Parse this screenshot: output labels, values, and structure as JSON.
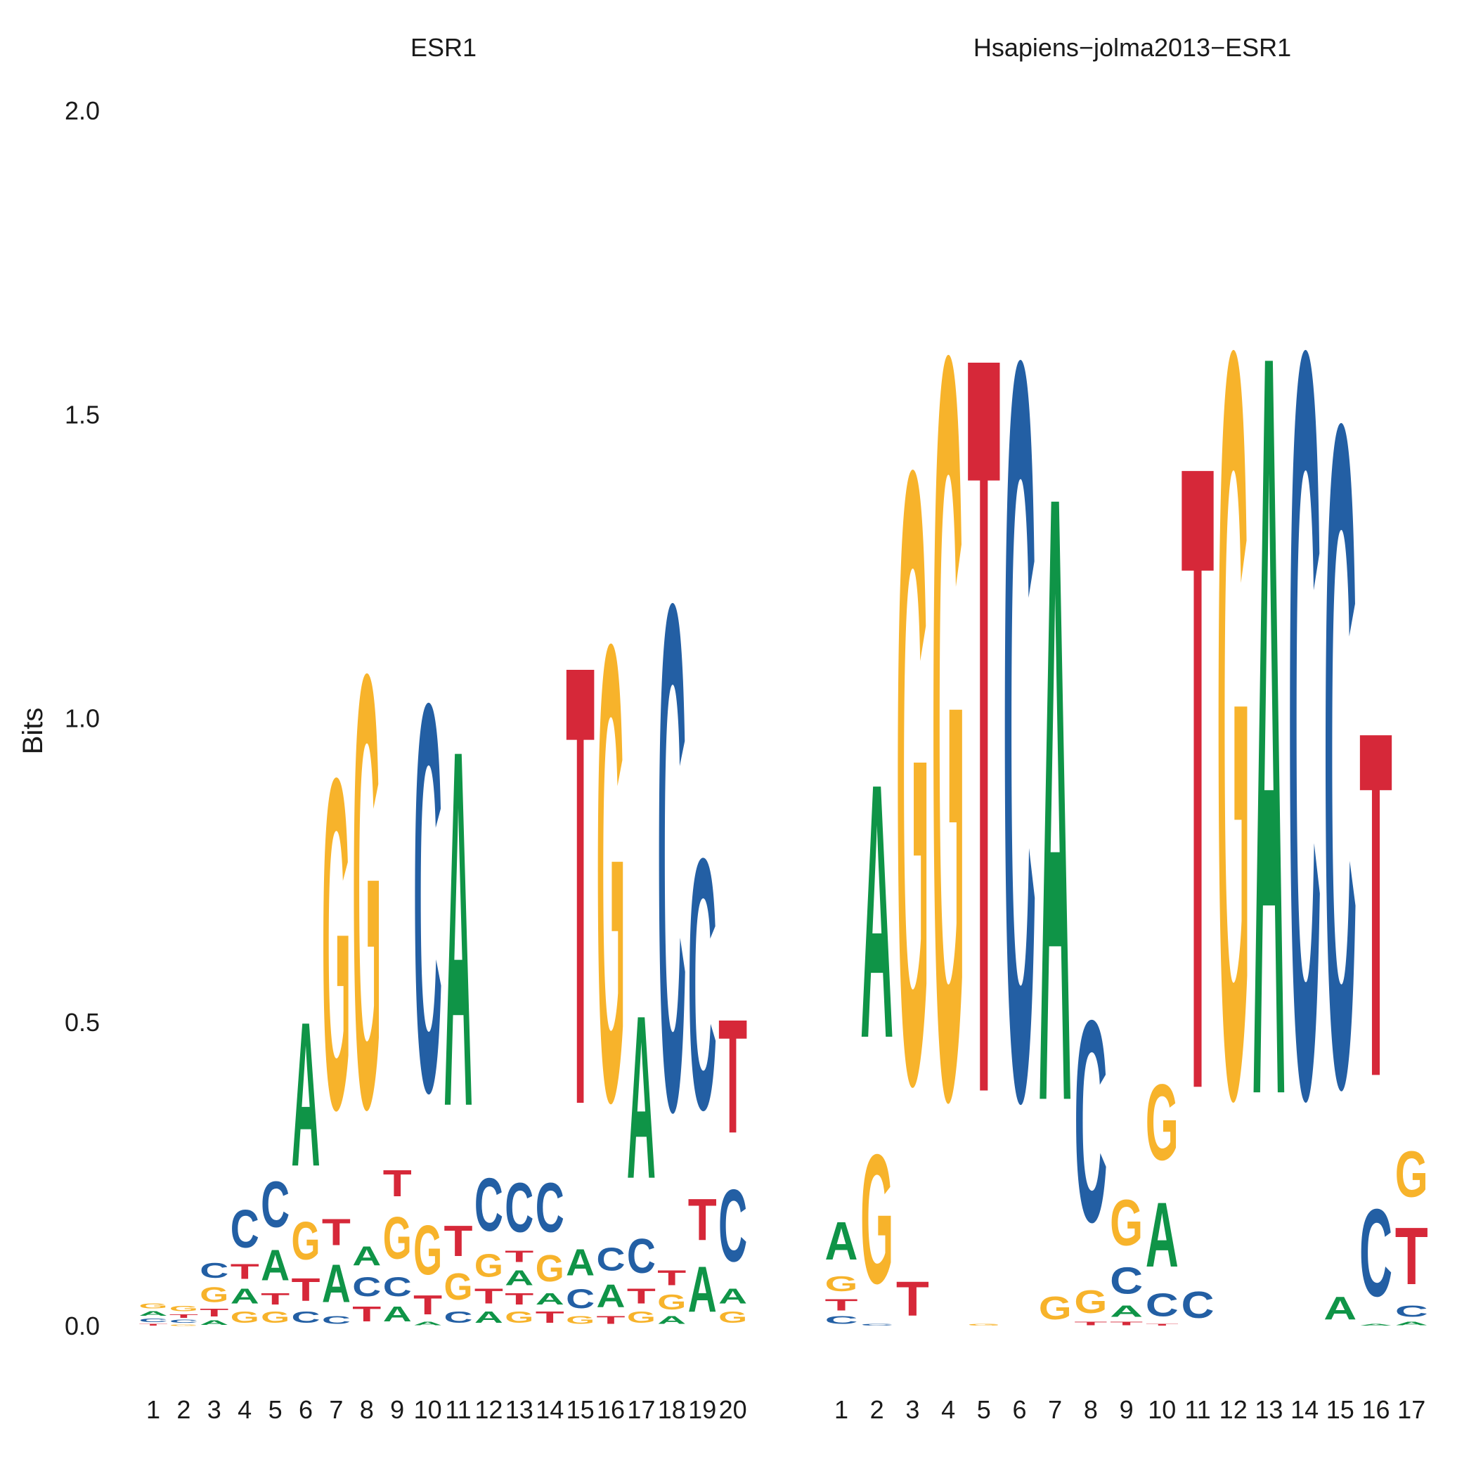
{
  "colors": {
    "A": "#0f9447",
    "C": "#235fa4",
    "G": "#f7b32b",
    "T": "#d62839"
  },
  "chart_data": [
    {
      "type": "sequence-logo",
      "title": "ESR1",
      "ylabel": "Bits",
      "ylim": [
        0,
        2
      ],
      "yticks": [
        "0.0",
        "0.5",
        "1.0",
        "1.5",
        "2.0"
      ],
      "positions": [
        [
          [
            "T",
            0.005
          ],
          [
            "C",
            0.01
          ],
          [
            "A",
            0.012
          ],
          [
            "G",
            0.013
          ]
        ],
        [
          [
            "G",
            0.004
          ],
          [
            "C",
            0.008
          ],
          [
            "T",
            0.01
          ],
          [
            "G",
            0.014
          ]
        ],
        [
          [
            "A",
            0.012
          ],
          [
            "T",
            0.02
          ],
          [
            "G",
            0.04
          ],
          [
            "C",
            0.04
          ]
        ],
        [
          [
            "G",
            0.03
          ],
          [
            "A",
            0.04
          ],
          [
            "T",
            0.04
          ],
          [
            "C",
            0.1
          ]
        ],
        [
          [
            "G",
            0.03
          ],
          [
            "T",
            0.03
          ],
          [
            "A",
            0.08
          ],
          [
            "C",
            0.12
          ]
        ],
        [
          [
            "C",
            0.03
          ],
          [
            "T",
            0.06
          ],
          [
            "G",
            0.1
          ],
          [
            "A",
            0.38
          ]
        ],
        [
          [
            "C",
            0.02
          ],
          [
            "A",
            0.1
          ],
          [
            "T",
            0.07
          ],
          [
            "G",
            0.87
          ]
        ],
        [
          [
            "T",
            0.04
          ],
          [
            "C",
            0.05
          ],
          [
            "A",
            0.05
          ],
          [
            "G",
            1.14
          ]
        ],
        [
          [
            "A",
            0.04
          ],
          [
            "C",
            0.05
          ],
          [
            "G",
            0.11
          ],
          [
            "T",
            0.07
          ]
        ],
        [
          [
            "A",
            0.01
          ],
          [
            "T",
            0.05
          ],
          [
            "G",
            0.13
          ],
          [
            "C",
            1.02
          ]
        ],
        [
          [
            "C",
            0.03
          ],
          [
            "G",
            0.07
          ],
          [
            "T",
            0.08
          ],
          [
            "A",
            0.94
          ]
        ],
        [
          [
            "A",
            0.03
          ],
          [
            "T",
            0.04
          ],
          [
            "G",
            0.06
          ],
          [
            "C",
            0.14
          ]
        ],
        [
          [
            "G",
            0.03
          ],
          [
            "T",
            0.03
          ],
          [
            "A",
            0.04
          ],
          [
            "T",
            0.03
          ],
          [
            "C",
            0.13
          ]
        ],
        [
          [
            "T",
            0.03
          ],
          [
            "A",
            0.03
          ],
          [
            "G",
            0.07
          ],
          [
            "C",
            0.13
          ]
        ],
        [
          [
            "G",
            0.02
          ],
          [
            "C",
            0.05
          ],
          [
            "A",
            0.07
          ],
          [
            "T",
            1.16
          ]
        ],
        [
          [
            "T",
            0.02
          ],
          [
            "A",
            0.06
          ],
          [
            "C",
            0.06
          ],
          [
            "G",
            1.2
          ]
        ],
        [
          [
            "G",
            0.03
          ],
          [
            "T",
            0.04
          ],
          [
            "C",
            0.09
          ],
          [
            "A",
            0.43
          ]
        ],
        [
          [
            "A",
            0.02
          ],
          [
            "G",
            0.04
          ],
          [
            "T",
            0.04
          ],
          [
            "C",
            1.33
          ]
        ],
        [
          [
            "A",
            0.12
          ],
          [
            "T",
            0.11
          ],
          [
            "C",
            0.66
          ]
        ],
        [
          [
            "G",
            0.03
          ],
          [
            "A",
            0.04
          ],
          [
            "C",
            0.19
          ],
          [
            "T",
            0.3
          ]
        ]
      ]
    },
    {
      "type": "sequence-logo",
      "title": "Hsapiens−jolma2013−ESR1",
      "ylabel": "",
      "ylim": [
        0,
        2
      ],
      "yticks": [],
      "positions": [
        [
          [
            "C",
            0.02
          ],
          [
            "T",
            0.03
          ],
          [
            "G",
            0.04
          ],
          [
            "A",
            0.1
          ]
        ],
        [
          [
            "C",
            0.005
          ],
          [
            "G",
            0.34
          ],
          [
            "A",
            0.67
          ]
        ],
        [
          [
            "T",
            0.09
          ],
          [
            "G",
            1.61
          ]
        ],
        [
          [
            "G",
            1.95
          ]
        ],
        [
          [
            "G",
            0.005
          ],
          [
            "T",
            1.95
          ]
        ],
        [
          [
            "C",
            1.94
          ]
        ],
        [
          [
            "G",
            0.06
          ],
          [
            "A",
            1.6
          ]
        ],
        [
          [
            "T",
            0.01
          ],
          [
            "G",
            0.06
          ],
          [
            "C",
            0.53
          ]
        ],
        [
          [
            "T",
            0.01
          ],
          [
            "A",
            0.03
          ],
          [
            "C",
            0.07
          ],
          [
            "G",
            0.12
          ]
        ],
        [
          [
            "T",
            0.005
          ],
          [
            "C",
            0.06
          ],
          [
            "A",
            0.17
          ],
          [
            "G",
            0.2
          ]
        ],
        [
          [
            "C",
            0.07
          ],
          [
            "T",
            1.65
          ]
        ],
        [
          [
            "G",
            1.96
          ]
        ],
        [
          [
            "A",
            1.96
          ]
        ],
        [
          [
            "C",
            1.96
          ]
        ],
        [
          [
            "A",
            0.06
          ],
          [
            "C",
            1.74
          ]
        ],
        [
          [
            "A",
            0.005
          ],
          [
            "C",
            0.23
          ],
          [
            "T",
            0.91
          ]
        ],
        [
          [
            "A",
            0.01
          ],
          [
            "C",
            0.03
          ],
          [
            "T",
            0.15
          ],
          [
            "G",
            0.12
          ]
        ]
      ]
    }
  ]
}
